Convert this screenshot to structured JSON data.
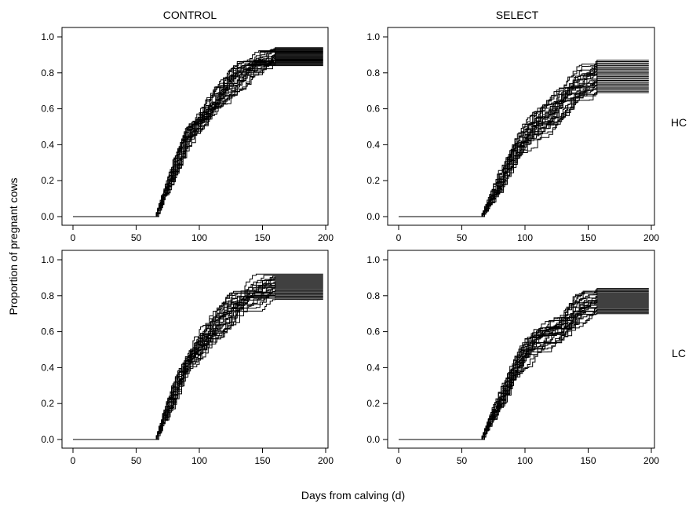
{
  "figure": {
    "xlabel": "Days from calving (d)",
    "ylabel": "Proportion of pregnant cows",
    "columns": [
      "CONTROL",
      "SELECT"
    ],
    "rows": [
      "HC",
      "LC"
    ]
  },
  "chart_data": [
    {
      "type": "line",
      "panel": "CONTROL-HC",
      "column": "CONTROL",
      "row": "HC",
      "x_range": [
        0,
        200
      ],
      "ylim": [
        0,
        1
      ],
      "x_ticks": [
        0,
        50,
        100,
        150,
        200
      ],
      "y_ticks": [
        0.0,
        0.2,
        0.4,
        0.6,
        0.8,
        1.0
      ],
      "y_tick_labels": [
        "0.0",
        "0.2",
        "0.4",
        "0.6",
        "0.8",
        "1.0"
      ],
      "grid": false,
      "line_color": "#000000",
      "step_start_day": 65,
      "plateau_day": 160,
      "end_day": 198,
      "replicates": 25,
      "final_range": [
        0.84,
        0.94
      ],
      "curve_shape": {
        "day": [
          65,
          70,
          80,
          90,
          100,
          110,
          120,
          130,
          140,
          150,
          160
        ],
        "proportion": [
          0.0,
          0.1,
          0.27,
          0.44,
          0.53,
          0.63,
          0.71,
          0.77,
          0.82,
          0.86,
          0.89
        ]
      }
    },
    {
      "type": "line",
      "panel": "SELECT-HC",
      "column": "SELECT",
      "row": "HC",
      "x_range": [
        0,
        200
      ],
      "ylim": [
        0,
        1
      ],
      "x_ticks": [
        0,
        50,
        100,
        150,
        200
      ],
      "y_ticks": [
        0.0,
        0.2,
        0.4,
        0.6,
        0.8,
        1.0
      ],
      "y_tick_labels": [
        "0.0",
        "0.2",
        "0.4",
        "0.6",
        "0.8",
        "1.0"
      ],
      "grid": false,
      "line_color": "#000000",
      "step_start_day": 65,
      "plateau_day": 157,
      "end_day": 198,
      "replicates": 25,
      "final_range": [
        0.69,
        0.87
      ],
      "curve_shape": {
        "day": [
          65,
          70,
          80,
          90,
          100,
          110,
          120,
          130,
          140,
          150,
          157
        ],
        "proportion": [
          0.0,
          0.07,
          0.2,
          0.33,
          0.42,
          0.51,
          0.56,
          0.63,
          0.68,
          0.72,
          0.76
        ]
      }
    },
    {
      "type": "line",
      "panel": "CONTROL-LC",
      "column": "CONTROL",
      "row": "LC",
      "x_range": [
        0,
        200
      ],
      "ylim": [
        0,
        1
      ],
      "x_ticks": [
        0,
        50,
        100,
        150,
        200
      ],
      "y_ticks": [
        0.0,
        0.2,
        0.4,
        0.6,
        0.8,
        1.0
      ],
      "y_tick_labels": [
        "0.0",
        "0.2",
        "0.4",
        "0.6",
        "0.8",
        "1.0"
      ],
      "grid": false,
      "line_color": "#000000",
      "step_start_day": 65,
      "plateau_day": 160,
      "end_day": 198,
      "replicates": 25,
      "final_range": [
        0.78,
        0.92
      ],
      "curve_shape": {
        "day": [
          65,
          70,
          80,
          90,
          100,
          110,
          120,
          130,
          140,
          150,
          160
        ],
        "proportion": [
          0.0,
          0.1,
          0.27,
          0.43,
          0.53,
          0.62,
          0.7,
          0.76,
          0.8,
          0.83,
          0.86
        ]
      }
    },
    {
      "type": "line",
      "panel": "SELECT-LC",
      "column": "SELECT",
      "row": "LC",
      "x_range": [
        0,
        200
      ],
      "ylim": [
        0,
        1
      ],
      "x_ticks": [
        0,
        50,
        100,
        150,
        200
      ],
      "y_ticks": [
        0.0,
        0.2,
        0.4,
        0.6,
        0.8,
        1.0
      ],
      "y_tick_labels": [
        "0.0",
        "0.2",
        "0.4",
        "0.6",
        "0.8",
        "1.0"
      ],
      "grid": false,
      "line_color": "#000000",
      "step_start_day": 65,
      "plateau_day": 157,
      "end_day": 198,
      "replicates": 25,
      "final_range": [
        0.7,
        0.84
      ],
      "curve_shape": {
        "day": [
          65,
          70,
          80,
          90,
          100,
          110,
          120,
          130,
          140,
          150,
          157
        ],
        "proportion": [
          0.0,
          0.08,
          0.24,
          0.38,
          0.47,
          0.54,
          0.6,
          0.65,
          0.7,
          0.74,
          0.77
        ]
      }
    }
  ]
}
